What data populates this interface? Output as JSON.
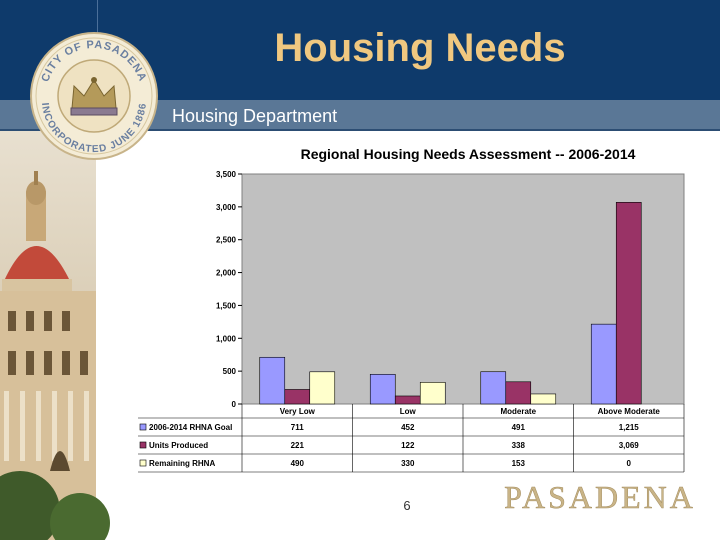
{
  "slide": {
    "title": "Housing Needs",
    "subtitle": "Housing Department",
    "page_number": "6"
  },
  "seal": {
    "outer_text": "CITY OF PASADENA",
    "bottom_text": "INCORPORATED JUNE 1886"
  },
  "logo": {
    "text": "PASADENA"
  },
  "colors": {
    "header": "#0e3a6b",
    "title": "#f0c880",
    "goal": "#9999ff",
    "produced": "#993366",
    "remaining": "#ffffcc",
    "plot_bg": "#c0c0c0"
  },
  "chart_data": {
    "type": "bar",
    "title": "Regional Housing Needs Assessment  --  2006-2014",
    "categories": [
      "Very Low",
      "Low",
      "Moderate",
      "Above Moderate"
    ],
    "y_ticks": [
      "0",
      "500",
      "1,000",
      "1,500",
      "2,000",
      "2,500",
      "3,000",
      "3,500"
    ],
    "ylim": [
      0,
      3500
    ],
    "grid": false,
    "legend": "table-below",
    "series": [
      {
        "name": "2006-2014 RHNA Goal",
        "color": "#9999ff",
        "values": [
          711,
          452,
          491,
          1215
        ],
        "labels": [
          "711",
          "452",
          "491",
          "1,215"
        ]
      },
      {
        "name": "Units Produced",
        "color": "#993366",
        "values": [
          221,
          122,
          338,
          3069
        ],
        "labels": [
          "221",
          "122",
          "338",
          "3,069"
        ]
      },
      {
        "name": "Remaining RHNA",
        "color": "#ffffcc",
        "values": [
          490,
          330,
          153,
          0
        ],
        "labels": [
          "490",
          "330",
          "153",
          "0"
        ]
      }
    ]
  }
}
